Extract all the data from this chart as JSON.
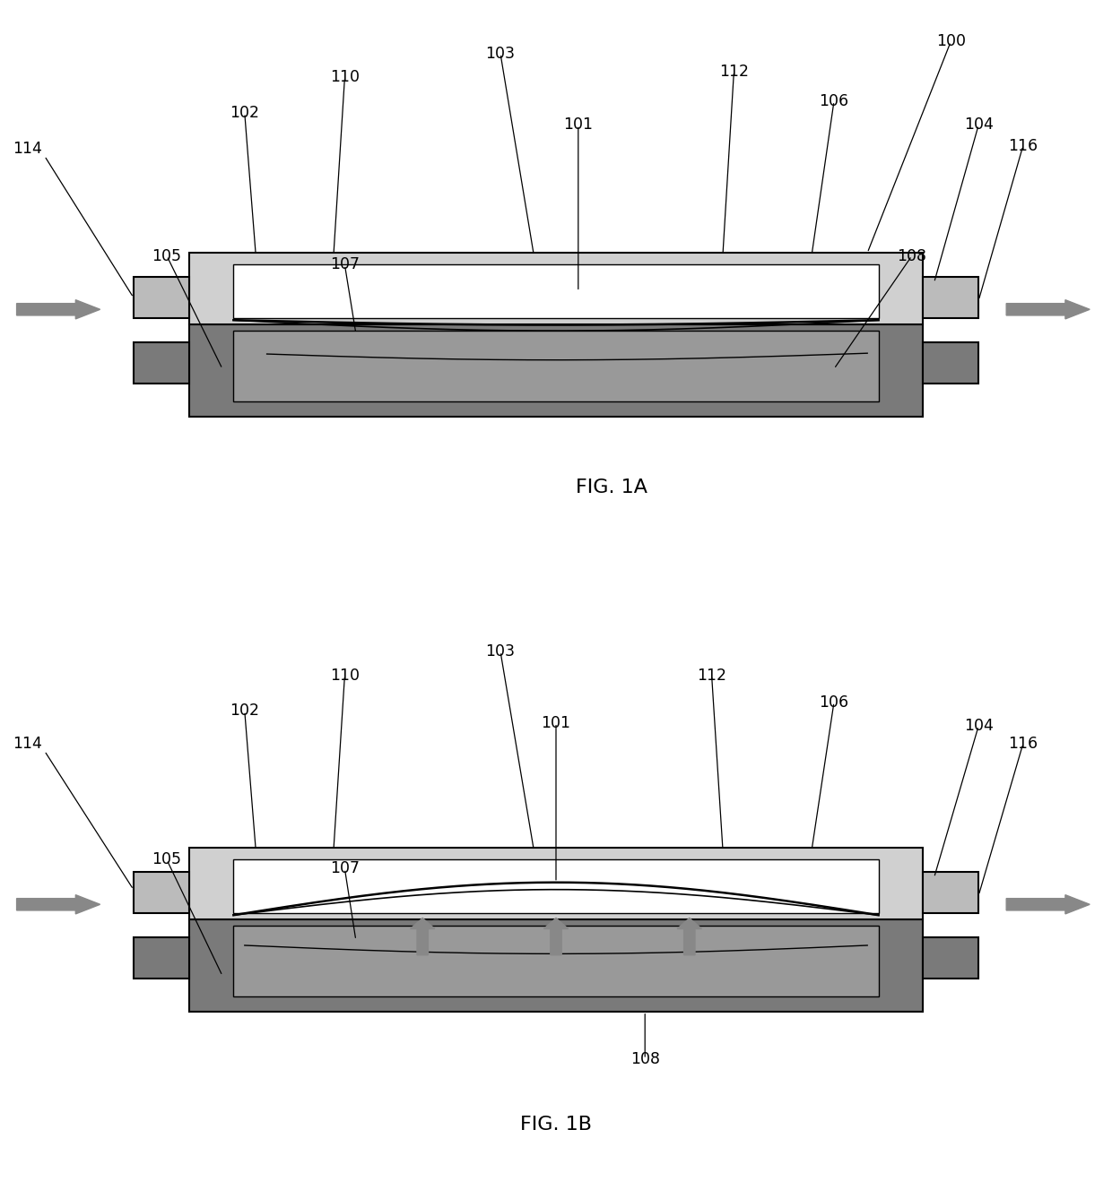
{
  "bg_color": "#ffffff",
  "line_color": "#000000",
  "dark_gray": "#7a7a7a",
  "medium_gray": "#999999",
  "light_gray": "#bbbbbb",
  "lighter_gray": "#d0d0d0",
  "arrow_color": "#888888",
  "fig1a_label": "FIG. 1A",
  "fig1b_label": "FIG. 1B"
}
